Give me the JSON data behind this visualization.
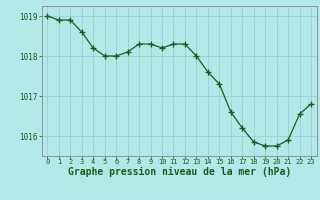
{
  "x": [
    0,
    1,
    2,
    3,
    4,
    5,
    6,
    7,
    8,
    9,
    10,
    11,
    12,
    13,
    14,
    15,
    16,
    17,
    18,
    19,
    20,
    21,
    22,
    23
  ],
  "y": [
    1019.0,
    1018.9,
    1018.9,
    1018.6,
    1018.2,
    1018.0,
    1018.0,
    1018.1,
    1018.3,
    1018.3,
    1018.2,
    1018.3,
    1018.3,
    1018.0,
    1017.6,
    1017.3,
    1016.6,
    1016.2,
    1015.85,
    1015.75,
    1015.75,
    1015.9,
    1016.55,
    1016.8
  ],
  "ylim": [
    1015.5,
    1019.25
  ],
  "yticks": [
    1016,
    1017,
    1018,
    1019
  ],
  "xlim": [
    -0.5,
    23.5
  ],
  "xticks": [
    0,
    1,
    2,
    3,
    4,
    5,
    6,
    7,
    8,
    9,
    10,
    11,
    12,
    13,
    14,
    15,
    16,
    17,
    18,
    19,
    20,
    21,
    22,
    23
  ],
  "line_color": "#1a5c1a",
  "marker": "+",
  "marker_color": "#1a5c1a",
  "bg_color": "#b3e8e8",
  "grid_color": "#8ecece",
  "xlabel": "Graphe pression niveau de la mer (hPa)",
  "xlabel_color": "#1a5c1a",
  "tick_color": "#1a5c1a",
  "axis_color": "#888888",
  "label_fontsize": 7.0
}
